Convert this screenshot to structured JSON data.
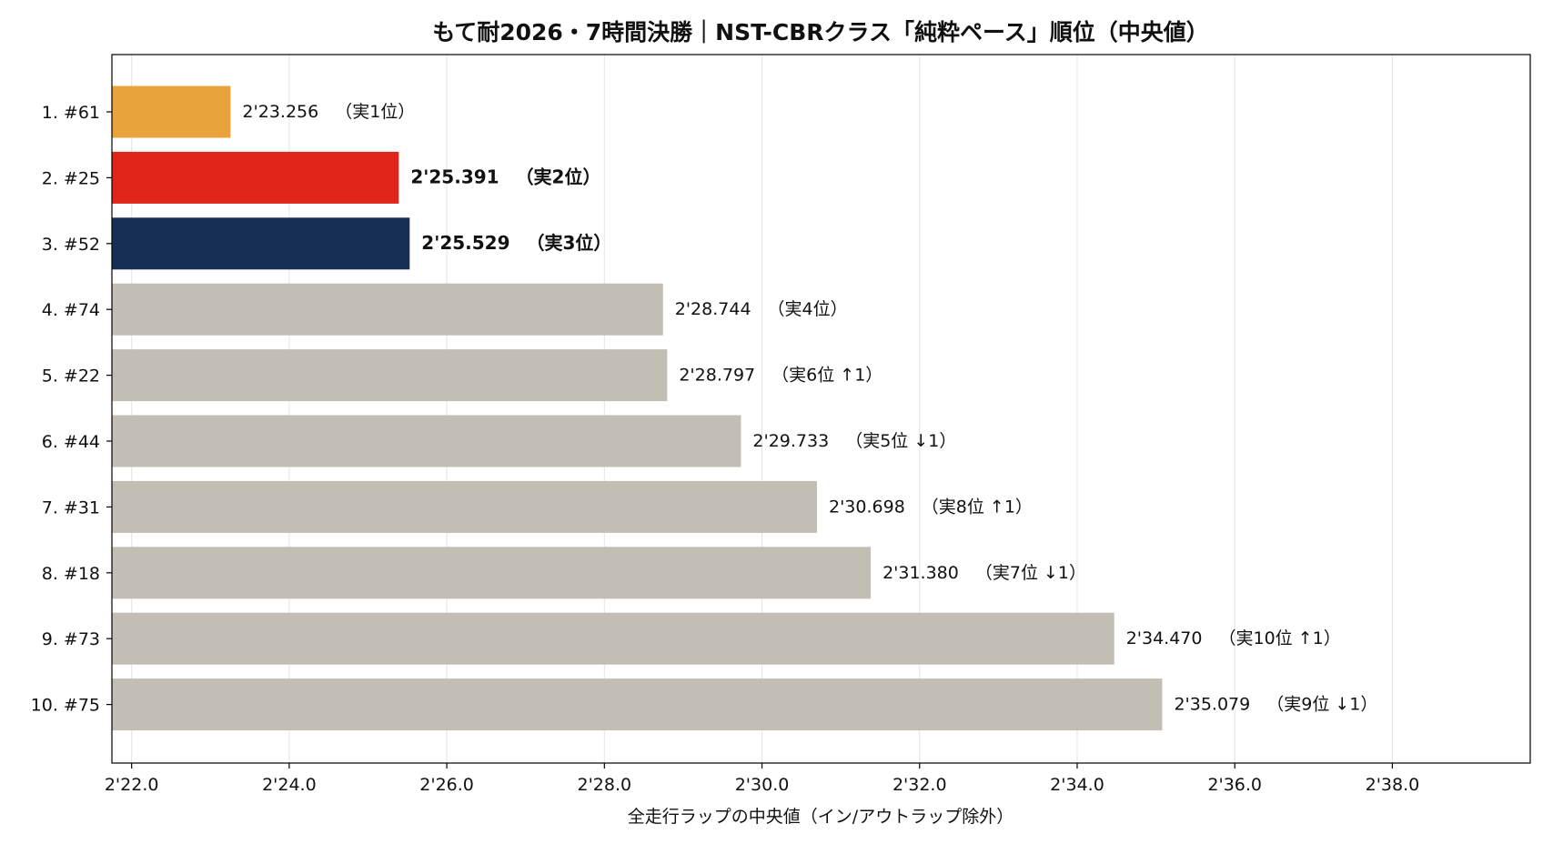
{
  "chart_data": {
    "type": "bar",
    "orientation": "horizontal",
    "title": "もて耐2026・7時間決勝｜NST-CBRクラス「純粋ペース」順位（中央値）",
    "xlabel": "全走行ラップの中央値（イン/アウトラップ除外）",
    "ylabel": "",
    "xlim": [
      141.75,
      159.75
    ],
    "xticks": [
      142,
      144,
      146,
      148,
      150,
      152,
      154,
      156,
      158
    ],
    "xtick_labels": [
      "2'22.0",
      "2'24.0",
      "2'26.0",
      "2'28.0",
      "2'30.0",
      "2'32.0",
      "2'34.0",
      "2'36.0",
      "2'38.0"
    ],
    "grid": {
      "x": true,
      "y": false
    },
    "categories": [
      "1. #61",
      "2. #25",
      "3. #52",
      "4. #74",
      "5. #22",
      "6. #44",
      "7. #31",
      "8. #18",
      "9. #73",
      "10. #75"
    ],
    "values": [
      143.256,
      145.391,
      145.529,
      148.744,
      148.797,
      149.733,
      150.698,
      151.38,
      154.47,
      155.079
    ],
    "value_labels": [
      "2'23.256",
      "2'25.391",
      "2'25.529",
      "2'28.744",
      "2'28.797",
      "2'29.733",
      "2'30.698",
      "2'31.380",
      "2'34.470",
      "2'35.079"
    ],
    "annotations": [
      "（実1位）",
      "（実2位）",
      "（実3位）",
      "（実4位）",
      "（実6位 ↑1）",
      "（実5位 ↓1）",
      "（実8位 ↑1）",
      "（実7位 ↓1）",
      "（実10位 ↑1）",
      "（実9位 ↓1）"
    ],
    "bold_labels": [
      false,
      true,
      true,
      false,
      false,
      false,
      false,
      false,
      false,
      false
    ],
    "colors": [
      "#e8a33d",
      "#e0251b",
      "#172e57",
      "#c3beb4",
      "#c3beb4",
      "#c3beb4",
      "#c3beb4",
      "#c3beb4",
      "#c3beb4",
      "#c3beb4"
    ]
  }
}
